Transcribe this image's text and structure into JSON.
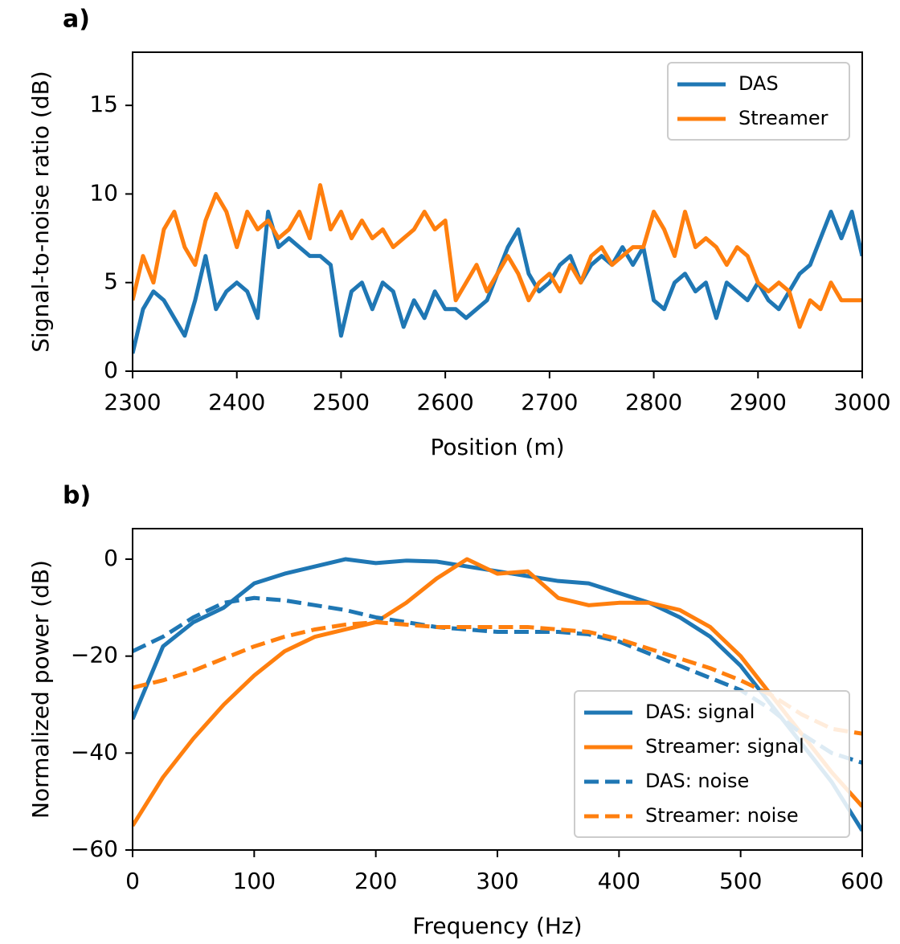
{
  "chart_data": [
    {
      "type": "line",
      "panel_label": "a)",
      "xlabel": "Position (m)",
      "ylabel": "Signal-to-noise ratio (dB)",
      "x": [
        2300,
        2310,
        2320,
        2330,
        2340,
        2350,
        2360,
        2370,
        2380,
        2390,
        2400,
        2410,
        2420,
        2430,
        2440,
        2450,
        2460,
        2470,
        2480,
        2490,
        2500,
        2510,
        2520,
        2530,
        2540,
        2550,
        2560,
        2570,
        2580,
        2590,
        2600,
        2610,
        2620,
        2630,
        2640,
        2650,
        2660,
        2670,
        2680,
        2690,
        2700,
        2710,
        2720,
        2730,
        2740,
        2750,
        2760,
        2770,
        2780,
        2790,
        2800,
        2810,
        2820,
        2830,
        2840,
        2850,
        2860,
        2870,
        2880,
        2890,
        2900,
        2910,
        2920,
        2930,
        2940,
        2950,
        2960,
        2970,
        2980,
        2990,
        3000
      ],
      "series": [
        {
          "name": "DAS",
          "color": "#1f77b4",
          "linestyle": "solid",
          "values": [
            1,
            3.5,
            4.5,
            4,
            3,
            2,
            4,
            6.5,
            3.5,
            4.5,
            5,
            4.5,
            3,
            9,
            7,
            7.5,
            7,
            6.5,
            6.5,
            6,
            2,
            4.5,
            5,
            3.5,
            5,
            4.5,
            2.5,
            4,
            3,
            4.5,
            3.5,
            3.5,
            3,
            3.5,
            4,
            5.5,
            7,
            8,
            5.5,
            4.5,
            5,
            6,
            6.5,
            5,
            6,
            6.5,
            6,
            7,
            6,
            7,
            4,
            3.5,
            5,
            5.5,
            4.5,
            5,
            3,
            5,
            4.5,
            4,
            5,
            4,
            3.5,
            4.5,
            5.5,
            6,
            7.5,
            9,
            7.5,
            9,
            6.5
          ]
        },
        {
          "name": "Streamer",
          "color": "#ff7f0e",
          "linestyle": "solid",
          "values": [
            4,
            6.5,
            5,
            8,
            9,
            7,
            6,
            8.5,
            10,
            9,
            7,
            9,
            8,
            8.5,
            7.5,
            8,
            9,
            7.5,
            10.5,
            8,
            9,
            7.5,
            8.5,
            7.5,
            8,
            7,
            7.5,
            8,
            9,
            8,
            8.5,
            4,
            5,
            6,
            4.5,
            5.5,
            6.5,
            5.5,
            4,
            5,
            5.5,
            4.5,
            6,
            5,
            6.5,
            7,
            6,
            6.5,
            7,
            7,
            9,
            8,
            6.5,
            9,
            7,
            7.5,
            7,
            6,
            7,
            6.5,
            5,
            4.5,
            5,
            4.5,
            2.5,
            4,
            3.5,
            5,
            4,
            4,
            4
          ]
        }
      ],
      "xlim": [
        2300,
        3000
      ],
      "xticks": [
        2300,
        2400,
        2500,
        2600,
        2700,
        2800,
        2900,
        3000
      ],
      "ylim": [
        0,
        18
      ],
      "yticks": [
        0,
        5,
        10,
        15
      ],
      "legend": "upper right"
    },
    {
      "type": "line",
      "panel_label": "b)",
      "xlabel": "Frequency (Hz)",
      "ylabel": "Normalized power (dB)",
      "x": [
        0,
        25,
        50,
        75,
        100,
        125,
        150,
        175,
        200,
        225,
        250,
        275,
        300,
        325,
        350,
        375,
        400,
        425,
        450,
        475,
        500,
        525,
        550,
        575,
        600
      ],
      "series": [
        {
          "name": "DAS: signal",
          "color": "#1f77b4",
          "linestyle": "solid",
          "values": [
            -33,
            -18,
            -13,
            -10,
            -5,
            -3,
            -1.5,
            0,
            -0.8,
            -0.3,
            -0.5,
            -1.5,
            -2.5,
            -3.5,
            -4.5,
            -5,
            -7,
            -9,
            -12,
            -16,
            -22,
            -30,
            -38,
            -46,
            -56
          ]
        },
        {
          "name": "Streamer: signal",
          "color": "#ff7f0e",
          "linestyle": "solid",
          "values": [
            -55,
            -45,
            -37,
            -30,
            -24,
            -19,
            -16,
            -14.5,
            -13,
            -9,
            -4,
            0,
            -3,
            -2.5,
            -8,
            -9.5,
            -9,
            -9,
            -10.5,
            -14,
            -20,
            -28,
            -36,
            -44,
            -51
          ]
        },
        {
          "name": "DAS: noise",
          "color": "#1f77b4",
          "linestyle": "dashed",
          "values": [
            -19,
            -16,
            -12,
            -9,
            -8,
            -8.5,
            -9.5,
            -10.5,
            -12,
            -13,
            -14,
            -14.5,
            -15,
            -15,
            -15,
            -15.5,
            -17,
            -19.5,
            -22,
            -24.5,
            -27,
            -31,
            -36,
            -40,
            -42
          ]
        },
        {
          "name": "Streamer: noise",
          "color": "#ff7f0e",
          "linestyle": "dashed",
          "values": [
            -26.5,
            -25,
            -23,
            -20.5,
            -18,
            -16,
            -14.5,
            -13.5,
            -13,
            -13.5,
            -14,
            -14,
            -14,
            -14,
            -14.5,
            -15,
            -16.5,
            -18.5,
            -20.5,
            -22.5,
            -25,
            -28,
            -32,
            -35,
            -36
          ]
        }
      ],
      "xlim": [
        0,
        600
      ],
      "xticks": [
        0,
        100,
        200,
        300,
        400,
        500,
        600
      ],
      "ylim": [
        -60,
        6.3
      ],
      "yticks": [
        {
          "value": -60,
          "label": "−60"
        },
        {
          "value": -40,
          "label": "−40"
        },
        {
          "value": -20,
          "label": "−20"
        },
        0
      ],
      "legend": "lower right"
    }
  ]
}
